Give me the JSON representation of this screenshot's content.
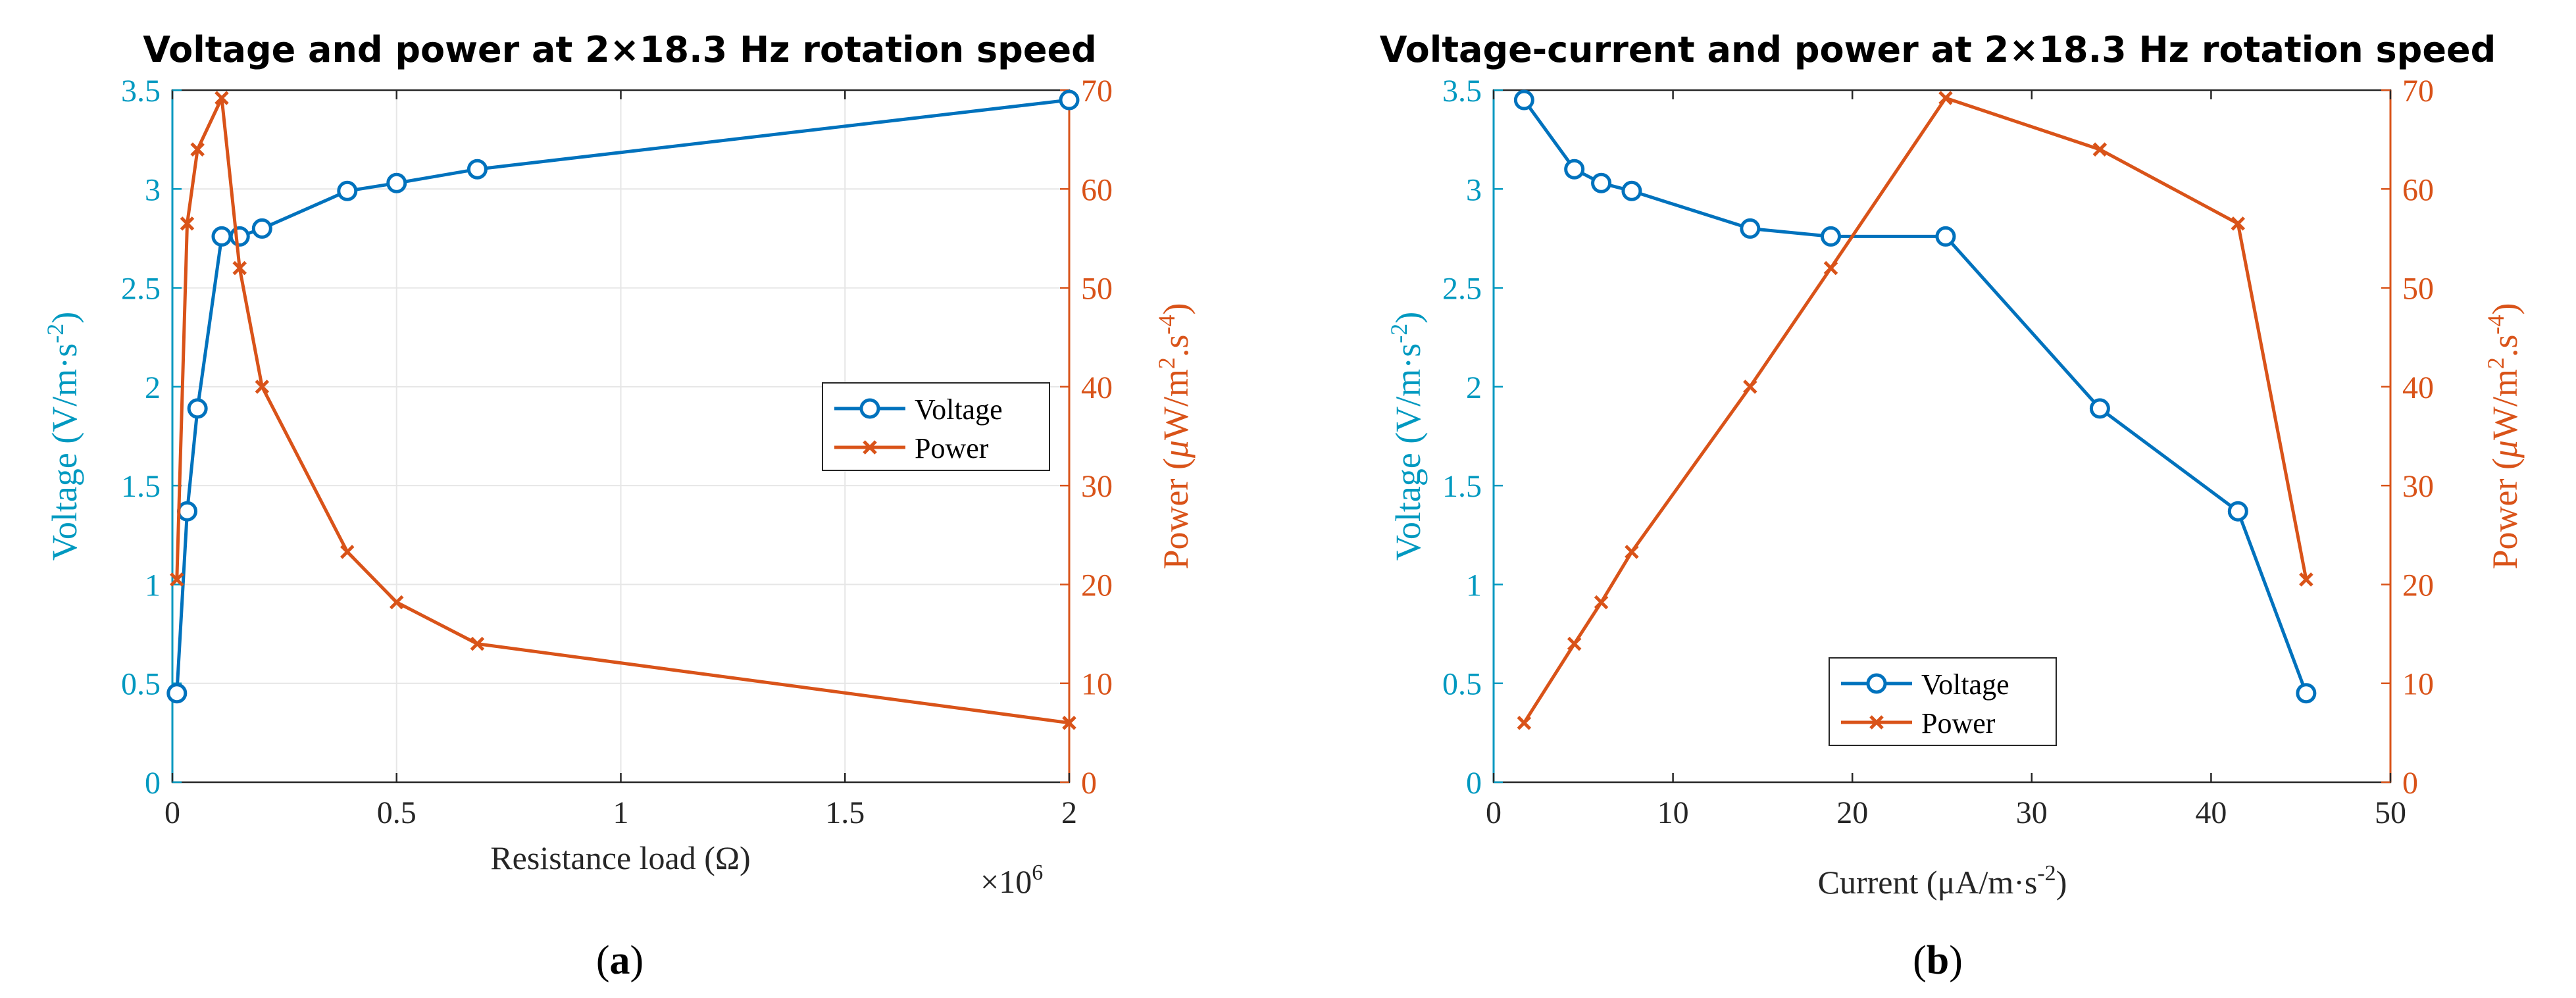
{
  "colors": {
    "voltage": "#0072BD",
    "power": "#D95319",
    "axis_left": "#0099c0",
    "axis_right": "#D95319",
    "axis_black": "#262626",
    "grid": "#e6e6e6"
  },
  "chart_data": [
    {
      "type": "line",
      "title": "Voltage and power at 2×18.3 Hz rotation speed",
      "xlabel": "Resistance load (Ω)",
      "x_multiplier": "×10",
      "x_multiplier_exp": "6",
      "x_scale": 1000000,
      "xlim": [
        0,
        2
      ],
      "xticks": [
        0,
        0.5,
        1,
        1.5,
        2
      ],
      "xtick_labels": [
        "0",
        "0.5",
        "1",
        "1.5",
        "2"
      ],
      "ylabel_left": {
        "main": "Voltage (V/m·s",
        "sup": "-2",
        "close": ")"
      },
      "ylim_left": [
        0,
        3.5
      ],
      "yticks_left": [
        0,
        0.5,
        1,
        1.5,
        2,
        2.5,
        3,
        3.5
      ],
      "ytick_labels_left": [
        "0",
        "0.5",
        "1",
        "1.5",
        "2",
        "2.5",
        "3",
        "3.5"
      ],
      "ylabel_right": {
        "mu": "μ",
        "main1": "Power (",
        "main2": "W/m",
        "sup1": "2",
        "mid": ".s",
        "sup2": "-4",
        "close": ")"
      },
      "ylim_right": [
        0,
        70
      ],
      "yticks_right": [
        0,
        10,
        20,
        30,
        40,
        50,
        60,
        70
      ],
      "ytick_labels_right": [
        "0",
        "10",
        "20",
        "30",
        "40",
        "50",
        "60",
        "70"
      ],
      "grid": true,
      "legend": {
        "position": "center-right",
        "entries": [
          "Voltage",
          "Power"
        ]
      },
      "series": [
        {
          "name": "Voltage",
          "axis": "left",
          "marker": "circle",
          "x": [
            0.01,
            0.033,
            0.056,
            0.11,
            0.15,
            0.2,
            0.39,
            0.5,
            0.68,
            2.0
          ],
          "y": [
            0.45,
            1.37,
            1.89,
            2.76,
            2.76,
            2.8,
            2.99,
            3.03,
            3.1,
            3.45
          ]
        },
        {
          "name": "Power",
          "axis": "right",
          "marker": "x",
          "x": [
            0.01,
            0.033,
            0.056,
            0.11,
            0.15,
            0.2,
            0.39,
            0.5,
            0.68,
            2.0
          ],
          "y": [
            20.5,
            56.5,
            64,
            69.2,
            52,
            40,
            23.3,
            18.2,
            14,
            6
          ]
        }
      ],
      "caption": "a"
    },
    {
      "type": "line",
      "title": "Voltage-current and power at 2×18.3 Hz rotation speed",
      "xlabel": {
        "main1": "Current (",
        "mu": "μ",
        "main2": "A/m·s",
        "sup": "-2",
        "close": ")"
      },
      "xlim": [
        0,
        50
      ],
      "xticks": [
        0,
        10,
        20,
        30,
        40,
        50
      ],
      "xtick_labels": [
        "0",
        "10",
        "20",
        "30",
        "40",
        "50"
      ],
      "ylabel_left": {
        "main": "Voltage (V/m·s",
        "sup": "-2",
        "close": ")"
      },
      "ylim_left": [
        0,
        3.5
      ],
      "yticks_left": [
        0,
        0.5,
        1,
        1.5,
        2,
        2.5,
        3,
        3.5
      ],
      "ytick_labels_left": [
        "0",
        "0.5",
        "1",
        "1.5",
        "2",
        "2.5",
        "3",
        "3.5"
      ],
      "ylabel_right": {
        "mu": "μ",
        "main1": "Power (",
        "main2": "W/m",
        "sup1": "2",
        "mid": ".s",
        "sup2": "-4",
        "close": ")"
      },
      "ylim_right": [
        0,
        70
      ],
      "yticks_right": [
        0,
        10,
        20,
        30,
        40,
        50,
        60,
        70
      ],
      "ytick_labels_right": [
        "0",
        "10",
        "20",
        "30",
        "40",
        "50",
        "60",
        "70"
      ],
      "grid": false,
      "legend": {
        "position": "bottom-center",
        "entries": [
          "Voltage",
          "Power"
        ]
      },
      "series": [
        {
          "name": "Voltage",
          "axis": "left",
          "marker": "circle",
          "x": [
            1.7,
            4.5,
            6.0,
            7.7,
            14.3,
            18.8,
            25.2,
            33.8,
            41.5,
            45.3
          ],
          "y": [
            3.45,
            3.1,
            3.03,
            2.99,
            2.8,
            2.76,
            2.76,
            1.89,
            1.37,
            0.45
          ]
        },
        {
          "name": "Power",
          "axis": "right",
          "marker": "x",
          "x": [
            1.7,
            4.5,
            6.0,
            7.7,
            14.3,
            18.8,
            25.2,
            33.8,
            41.5,
            45.3
          ],
          "y": [
            6,
            14,
            18.2,
            23.3,
            40,
            52,
            69.2,
            64,
            56.5,
            20.5
          ]
        }
      ],
      "caption": "b"
    }
  ],
  "captions": {
    "a": {
      "open": "(",
      "letter": "a",
      "close": ")"
    },
    "b": {
      "open": "(",
      "letter": "b",
      "close": ")"
    }
  }
}
